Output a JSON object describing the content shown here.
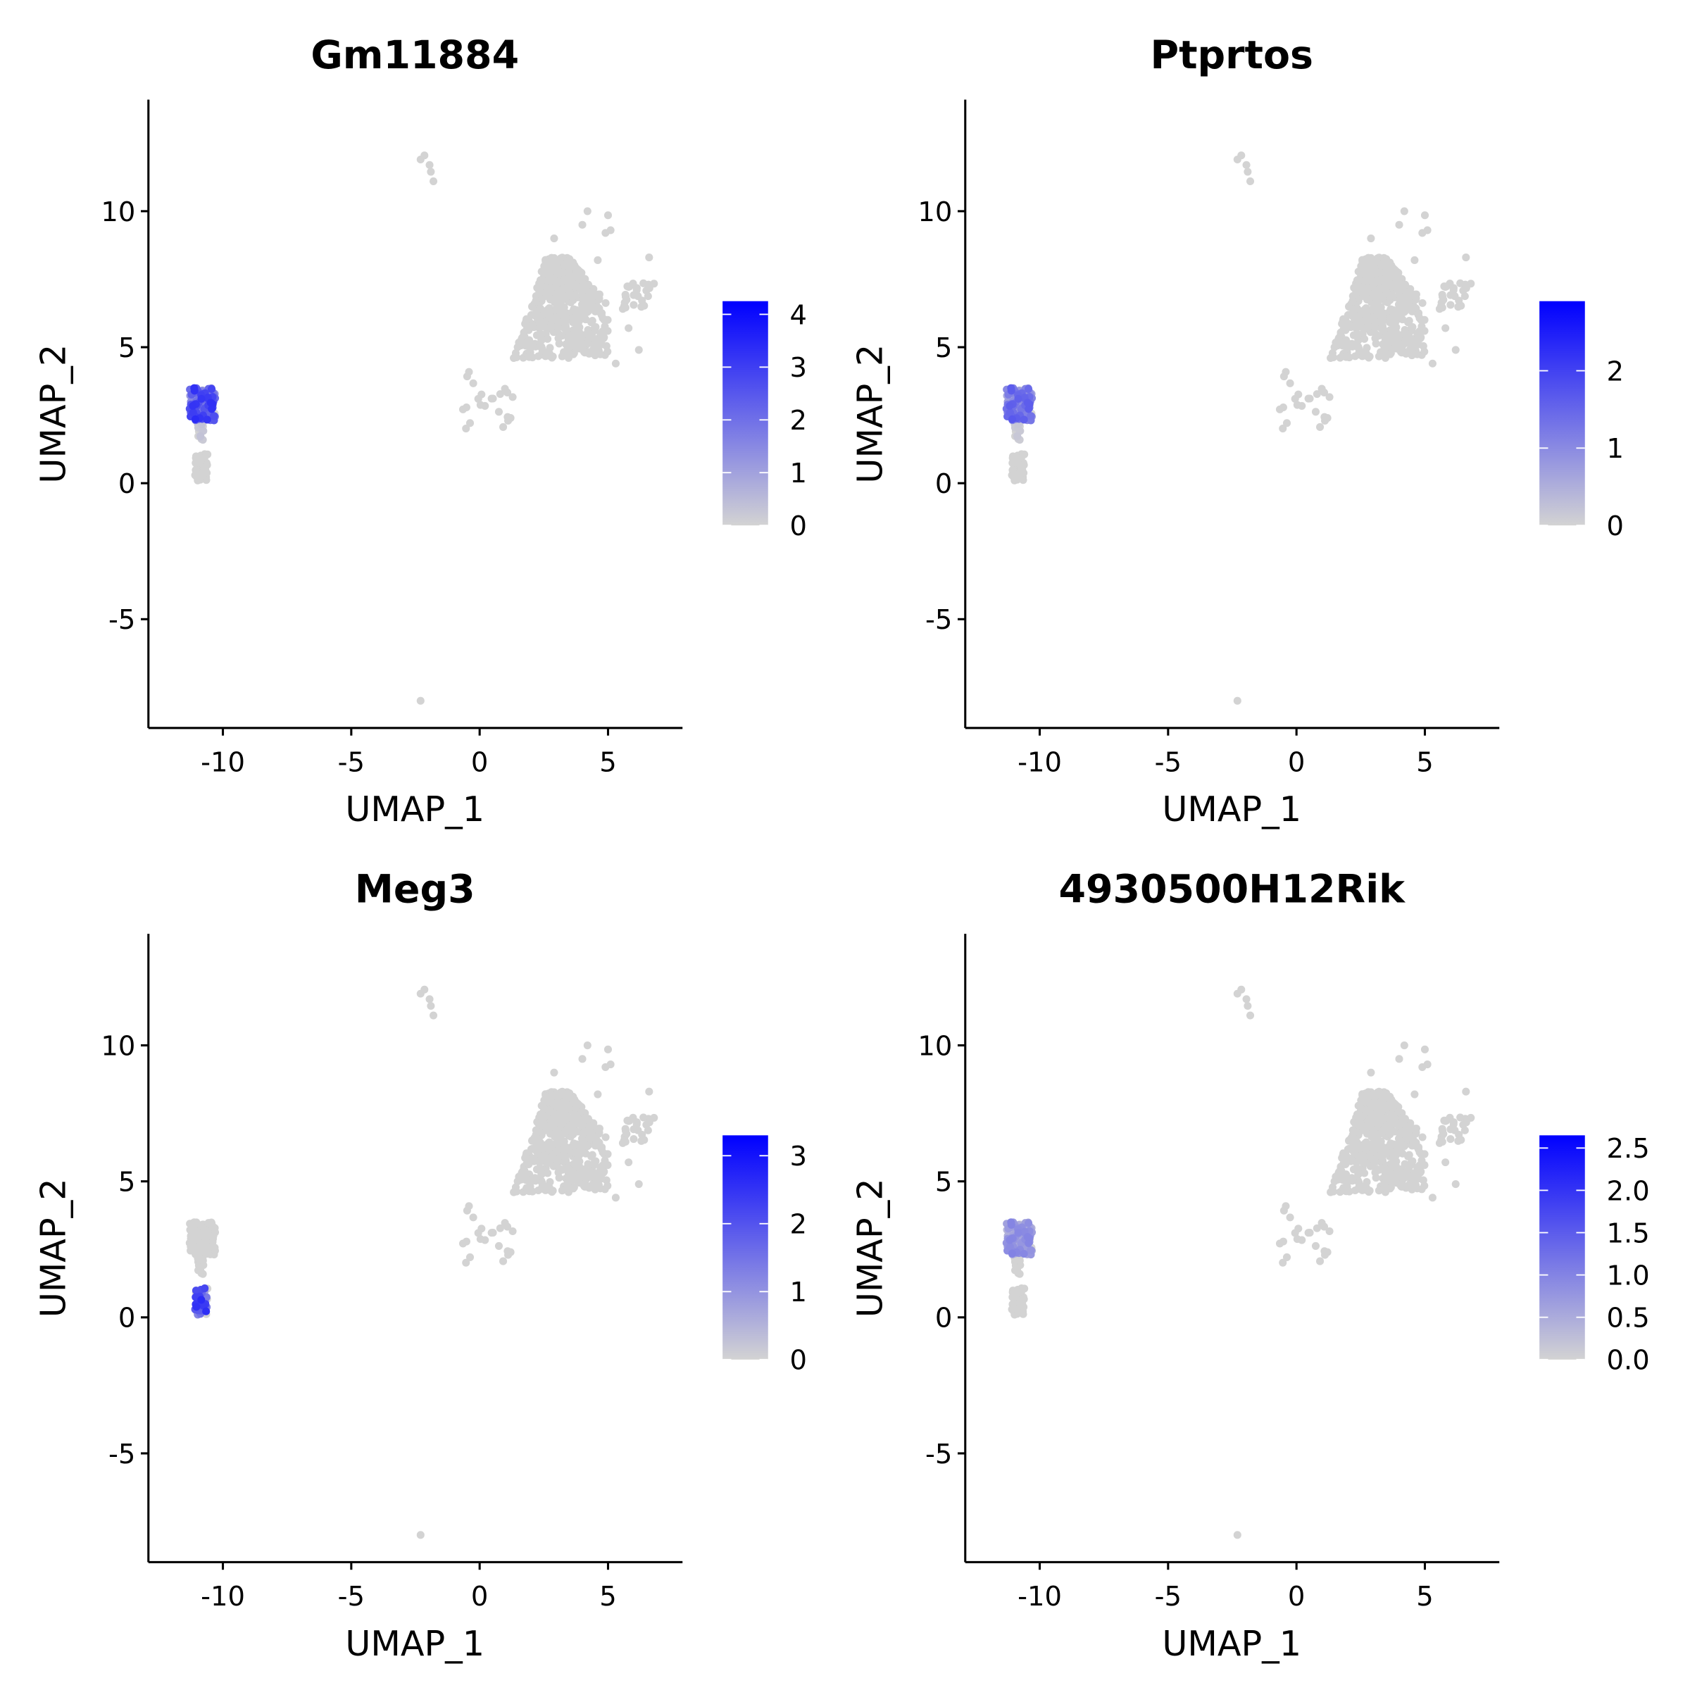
{
  "chart_data": [
    {
      "type": "scatter",
      "title": "Gm11884",
      "xlabel": "UMAP_1",
      "ylabel": "UMAP_2",
      "xlim": [
        -12.9,
        7.9
      ],
      "ylim": [
        -9,
        14.1
      ],
      "xticks": [
        "-10",
        "-5",
        "0",
        "5"
      ],
      "yticks": [
        "-5",
        "0",
        "5",
        "10"
      ],
      "colorbar": {
        "min": 0,
        "max": 4.25,
        "ticks": [
          "0",
          "1",
          "2",
          "3",
          "4"
        ],
        "low": "#d3d3d3",
        "high": "#0000ff"
      },
      "expression": {
        "main": 0,
        "left_top": 2.0,
        "left_stem": 0.2,
        "left_bottom": 0,
        "near_zero": 0,
        "outliers": 0
      }
    },
    {
      "type": "scatter",
      "title": "Ptprtos",
      "xlabel": "UMAP_1",
      "ylabel": "UMAP_2",
      "xlim": [
        -12.9,
        7.9
      ],
      "ylim": [
        -9,
        14.1
      ],
      "xticks": [
        "-10",
        "-5",
        "0",
        "5"
      ],
      "yticks": [
        "-5",
        "0",
        "5",
        "10"
      ],
      "colorbar": {
        "min": 0,
        "max": 2.9,
        "ticks": [
          "0",
          "1",
          "2"
        ],
        "low": "#d3d3d3",
        "high": "#0000ff"
      },
      "expression": {
        "main": 0,
        "left_top": 1.0,
        "left_stem": 0.1,
        "left_bottom": 0,
        "near_zero": 0,
        "outliers": 0
      }
    },
    {
      "type": "scatter",
      "title": "Meg3",
      "xlabel": "UMAP_1",
      "ylabel": "UMAP_2",
      "xlim": [
        -12.9,
        7.9
      ],
      "ylim": [
        -9,
        14.1
      ],
      "xticks": [
        "-10",
        "-5",
        "0",
        "5"
      ],
      "yticks": [
        "-5",
        "0",
        "5",
        "10"
      ],
      "colorbar": {
        "min": 0,
        "max": 3.3,
        "ticks": [
          "0",
          "1",
          "2",
          "3"
        ],
        "low": "#d3d3d3",
        "high": "#0000ff"
      },
      "expression": {
        "main": 0,
        "left_top": 0,
        "left_stem": 0,
        "left_bottom": 1.6,
        "near_zero": 0,
        "outliers": 0
      }
    },
    {
      "type": "scatter",
      "title": "4930500H12Rik",
      "xlabel": "UMAP_1",
      "ylabel": "UMAP_2",
      "xlim": [
        -12.9,
        7.9
      ],
      "ylim": [
        -9,
        14.1
      ],
      "xticks": [
        "-10",
        "-5",
        "0",
        "5"
      ],
      "yticks": [
        "-5",
        "0",
        "5",
        "10"
      ],
      "colorbar": {
        "min": 0,
        "max": 2.65,
        "ticks": [
          "0.0",
          "0.5",
          "1.0",
          "1.5",
          "2.0",
          "2.5"
        ],
        "low": "#d3d3d3",
        "high": "#0000ff"
      },
      "expression": {
        "main": 0,
        "left_top": 0.6,
        "left_stem": 0,
        "left_bottom": 0,
        "near_zero": 0,
        "outliers": 0
      }
    }
  ],
  "clusters": {
    "main": {
      "x": [
        1.3,
        5.0
      ],
      "y": [
        4.6,
        8.3
      ],
      "n": 520
    },
    "main_tail": {
      "x": [
        5.5,
        6.8
      ],
      "y": [
        6.4,
        7.4
      ],
      "n": 25
    },
    "left_top": {
      "x": [
        -11.3,
        -10.3
      ],
      "y": [
        2.3,
        3.5
      ],
      "n": 110
    },
    "left_stem": {
      "x": [
        -11.0,
        -10.75
      ],
      "y": [
        1.5,
        2.4
      ],
      "n": 20
    },
    "left_bottom": {
      "x": [
        -11.1,
        -10.6
      ],
      "y": [
        0.1,
        1.1
      ],
      "n": 45
    },
    "near_zero": {
      "x": [
        -0.8,
        1.3
      ],
      "y": [
        2.0,
        4.1
      ],
      "n": 22
    }
  },
  "outliers": [
    [
      -2.3,
      11.9
    ],
    [
      -2.15,
      12.05
    ],
    [
      -1.95,
      11.7
    ],
    [
      -1.9,
      11.45
    ],
    [
      -1.8,
      11.1
    ],
    [
      -2.3,
      -8.0
    ],
    [
      4.2,
      10.0
    ],
    [
      5.0,
      9.85
    ],
    [
      4.0,
      9.5
    ],
    [
      5.1,
      9.3
    ],
    [
      2.9,
      9.0
    ],
    [
      4.9,
      9.2
    ],
    [
      6.6,
      8.3
    ],
    [
      4.6,
      8.2
    ],
    [
      5.8,
      5.7
    ],
    [
      6.2,
      4.9
    ],
    [
      5.3,
      4.4
    ]
  ]
}
